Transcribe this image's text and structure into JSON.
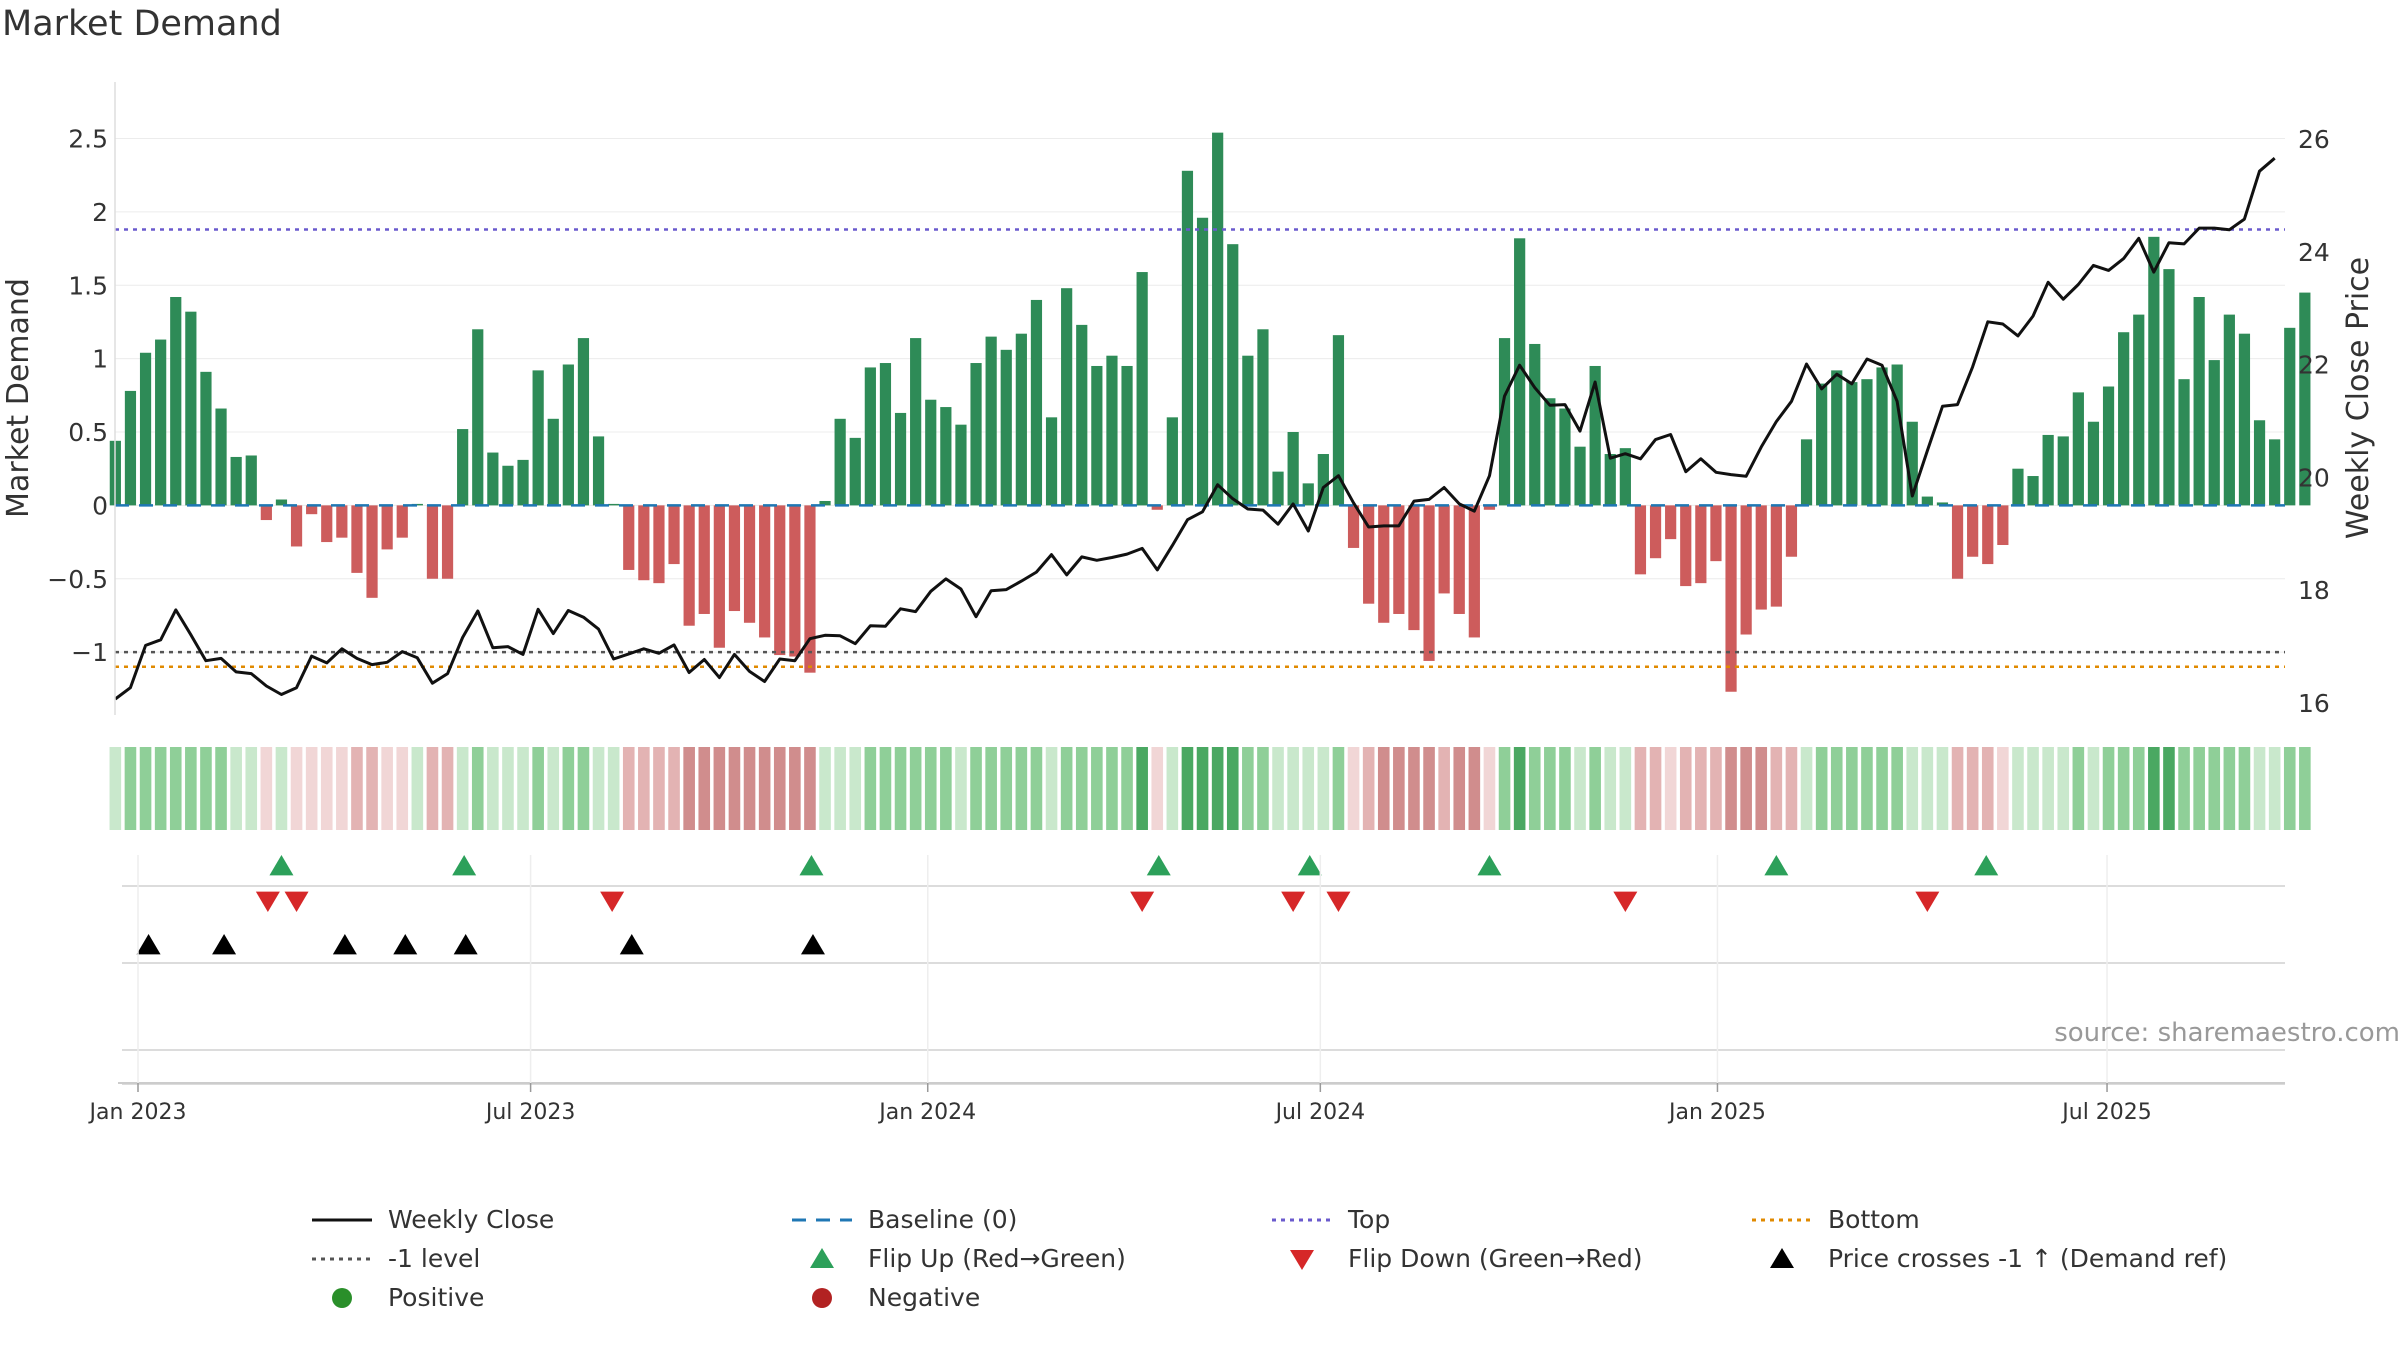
{
  "chart_data": {
    "type": "bar",
    "title": "Market Demand",
    "ylabel": "Market Demand",
    "y2label": "Weekly Close Price",
    "ylim": [
      -1.5,
      2.65
    ],
    "y2lim": [
      15.6,
      26.4
    ],
    "yticks": [
      {
        "v": 2.5,
        "label": "2.5"
      },
      {
        "v": 2,
        "label": "2"
      },
      {
        "v": 1.5,
        "label": "1.5"
      },
      {
        "v": 1,
        "label": "1"
      },
      {
        "v": 0.5,
        "label": "0.5"
      },
      {
        "v": 0,
        "label": "0"
      },
      {
        "v": -0.5,
        "label": "−0.5"
      },
      {
        "v": -1,
        "label": "−1"
      }
    ],
    "y2ticks": [
      {
        "v": 26,
        "label": "26"
      },
      {
        "v": 24,
        "label": "24"
      },
      {
        "v": 22,
        "label": "22"
      },
      {
        "v": 20,
        "label": "20"
      },
      {
        "v": 18,
        "label": "18"
      },
      {
        "v": 16,
        "label": "16"
      }
    ],
    "xticks": [
      {
        "week": 0,
        "label": "Jan 2023"
      },
      {
        "week": 26,
        "label": "Jul 2023"
      },
      {
        "week": 52.3,
        "label": "Jan 2024"
      },
      {
        "week": 78.3,
        "label": "Jul 2024"
      },
      {
        "week": 104.6,
        "label": "Jan 2025"
      },
      {
        "week": 130.4,
        "label": "Jul 2025"
      }
    ],
    "start_week": -1.5,
    "week_step": 1,
    "reference_lines": {
      "top": 1.88,
      "bottom": -1.1,
      "minus_one": -1,
      "baseline": 0
    },
    "demand": [
      0.44,
      0.78,
      1.04,
      1.13,
      1.42,
      1.32,
      0.91,
      0.66,
      0.33,
      0.34,
      -0.1,
      0.04,
      -0.28,
      -0.06,
      -0.25,
      -0.22,
      -0.46,
      -0.63,
      -0.3,
      -0.22,
      0.01,
      -0.5,
      -0.5,
      0.52,
      1.2,
      0.36,
      0.27,
      0.31,
      0.92,
      0.59,
      0.96,
      1.14,
      0.47,
      0.01,
      -0.44,
      -0.51,
      -0.53,
      -0.4,
      -0.82,
      -0.74,
      -0.97,
      -0.72,
      -0.8,
      -0.9,
      -1.02,
      -1.03,
      -1.14,
      0.03,
      0.59,
      0.46,
      0.94,
      0.97,
      0.63,
      1.14,
      0.72,
      0.67,
      0.55,
      0.97,
      1.15,
      1.06,
      1.17,
      1.4,
      0.6,
      1.48,
      1.23,
      0.95,
      1.02,
      0.95,
      1.59,
      -0.03,
      0.6,
      2.28,
      1.96,
      2.54,
      1.78,
      1.02,
      1.2,
      0.23,
      0.5,
      0.15,
      0.35,
      1.16,
      -0.29,
      -0.67,
      -0.8,
      -0.74,
      -0.85,
      -1.06,
      -0.6,
      -0.74,
      -0.9,
      -0.03,
      1.14,
      1.82,
      1.1,
      0.73,
      0.66,
      0.4,
      0.95,
      0.35,
      0.39,
      -0.47,
      -0.36,
      -0.23,
      -0.55,
      -0.53,
      -0.38,
      -1.27,
      -0.88,
      -0.71,
      -0.69,
      -0.35,
      0.45,
      0.83,
      0.92,
      0.84,
      0.86,
      0.94,
      0.96,
      0.57,
      0.06,
      0.02,
      -0.5,
      -0.35,
      -0.4,
      -0.27,
      0.25,
      0.2,
      0.48,
      0.47,
      0.77,
      0.57,
      0.81,
      1.18,
      1.3,
      1.83,
      1.61,
      0.86,
      1.42,
      0.99,
      1.3,
      1.17,
      0.58,
      0.45,
      1.21,
      1.45
    ],
    "close": [
      16.07,
      16.27,
      17.02,
      17.12,
      17.65,
      17.21,
      16.75,
      16.79,
      16.55,
      16.52,
      16.3,
      16.15,
      16.27,
      16.83,
      16.71,
      16.96,
      16.79,
      16.68,
      16.72,
      16.91,
      16.8,
      16.35,
      16.52,
      17.16,
      17.63,
      16.98,
      17.0,
      16.86,
      17.66,
      17.23,
      17.64,
      17.52,
      17.31,
      16.78,
      16.87,
      16.96,
      16.88,
      17.03,
      16.54,
      16.77,
      16.45,
      16.86,
      16.56,
      16.38,
      16.78,
      16.75,
      17.14,
      17.2,
      17.19,
      17.05,
      17.37,
      17.36,
      17.67,
      17.62,
      17.98,
      18.2,
      18.02,
      17.53,
      17.99,
      18.01,
      18.16,
      18.32,
      18.63,
      18.27,
      18.59,
      18.53,
      18.58,
      18.64,
      18.74,
      18.36,
      18.79,
      19.25,
      19.39,
      19.87,
      19.62,
      19.44,
      19.42,
      19.17,
      19.53,
      19.05,
      19.82,
      20.03,
      19.55,
      19.12,
      19.14,
      19.14,
      19.58,
      19.61,
      19.82,
      19.53,
      19.4,
      20.03,
      21.44,
      21.99,
      21.59,
      21.28,
      21.29,
      20.82,
      21.69,
      20.34,
      20.42,
      20.33,
      20.67,
      20.76,
      20.1,
      20.33,
      20.09,
      20.05,
      20.02,
      20.54,
      20.99,
      21.35,
      22.01,
      21.57,
      21.83,
      21.66,
      22.1,
      21.99,
      21.35,
      19.67,
      20.47,
      21.26,
      21.29,
      21.96,
      22.76,
      22.72,
      22.51,
      22.86,
      23.46,
      23.16,
      23.42,
      23.76,
      23.67,
      23.88,
      24.24,
      23.64,
      24.16,
      24.14,
      24.42,
      24.42,
      24.39,
      24.58,
      25.43,
      25.66
    ],
    "flip_up_weeks": [
      9.5,
      21.6,
      44.6,
      67.6,
      77.6,
      89.5,
      108.5,
      122.4
    ],
    "flip_down_weeks": [
      8.6,
      10.5,
      31.4,
      66.5,
      76.5,
      79.5,
      98.5,
      118.5
    ],
    "price_cross_weeks": [
      0.7,
      5.7,
      13.7,
      17.7,
      21.7,
      32.7,
      44.7
    ],
    "legend": [
      {
        "label": "Weekly Close",
        "style": "solid-line"
      },
      {
        "label": "Baseline (0)",
        "style": "dashed-line"
      },
      {
        "label": "Top",
        "style": "dotted-line"
      },
      {
        "label": "Bottom",
        "style": "dotted-line"
      },
      {
        "label": "-1 level",
        "style": "dotted-line"
      },
      {
        "label": "Flip Up (Red→Green)",
        "style": "triangle-up"
      },
      {
        "label": "Flip Down (Green→Red)",
        "style": "triangle-down"
      },
      {
        "label": "Price crosses -1 ↑ (Demand ref)",
        "style": "triangle-up"
      },
      {
        "label": "Positive",
        "style": "circle"
      },
      {
        "label": "Negative",
        "style": "circle"
      }
    ]
  },
  "colors": {
    "positive": "#2e8b57",
    "negative": "#cd5c5c",
    "close_line": "#111111",
    "baseline": "#1f77b4",
    "top": "#6a5acd",
    "minus_one": "#555555",
    "bottom": "#e08a00",
    "flip_up": "#2ca05a",
    "flip_down": "#d62728",
    "cross": "#000000",
    "legend_positive": "#2a8f2a",
    "legend_negative": "#b22222",
    "strip_pos_weak": "#c9e8cc",
    "strip_pos_mid": "#8fcf98",
    "strip_pos_strong": "#4aa862",
    "strip_neg_weak": "#f1d6d6",
    "strip_neg_mid": "#e3b3b3",
    "strip_neg_strong": "#d08d8d"
  },
  "source_note": "source: sharemaestro.com"
}
